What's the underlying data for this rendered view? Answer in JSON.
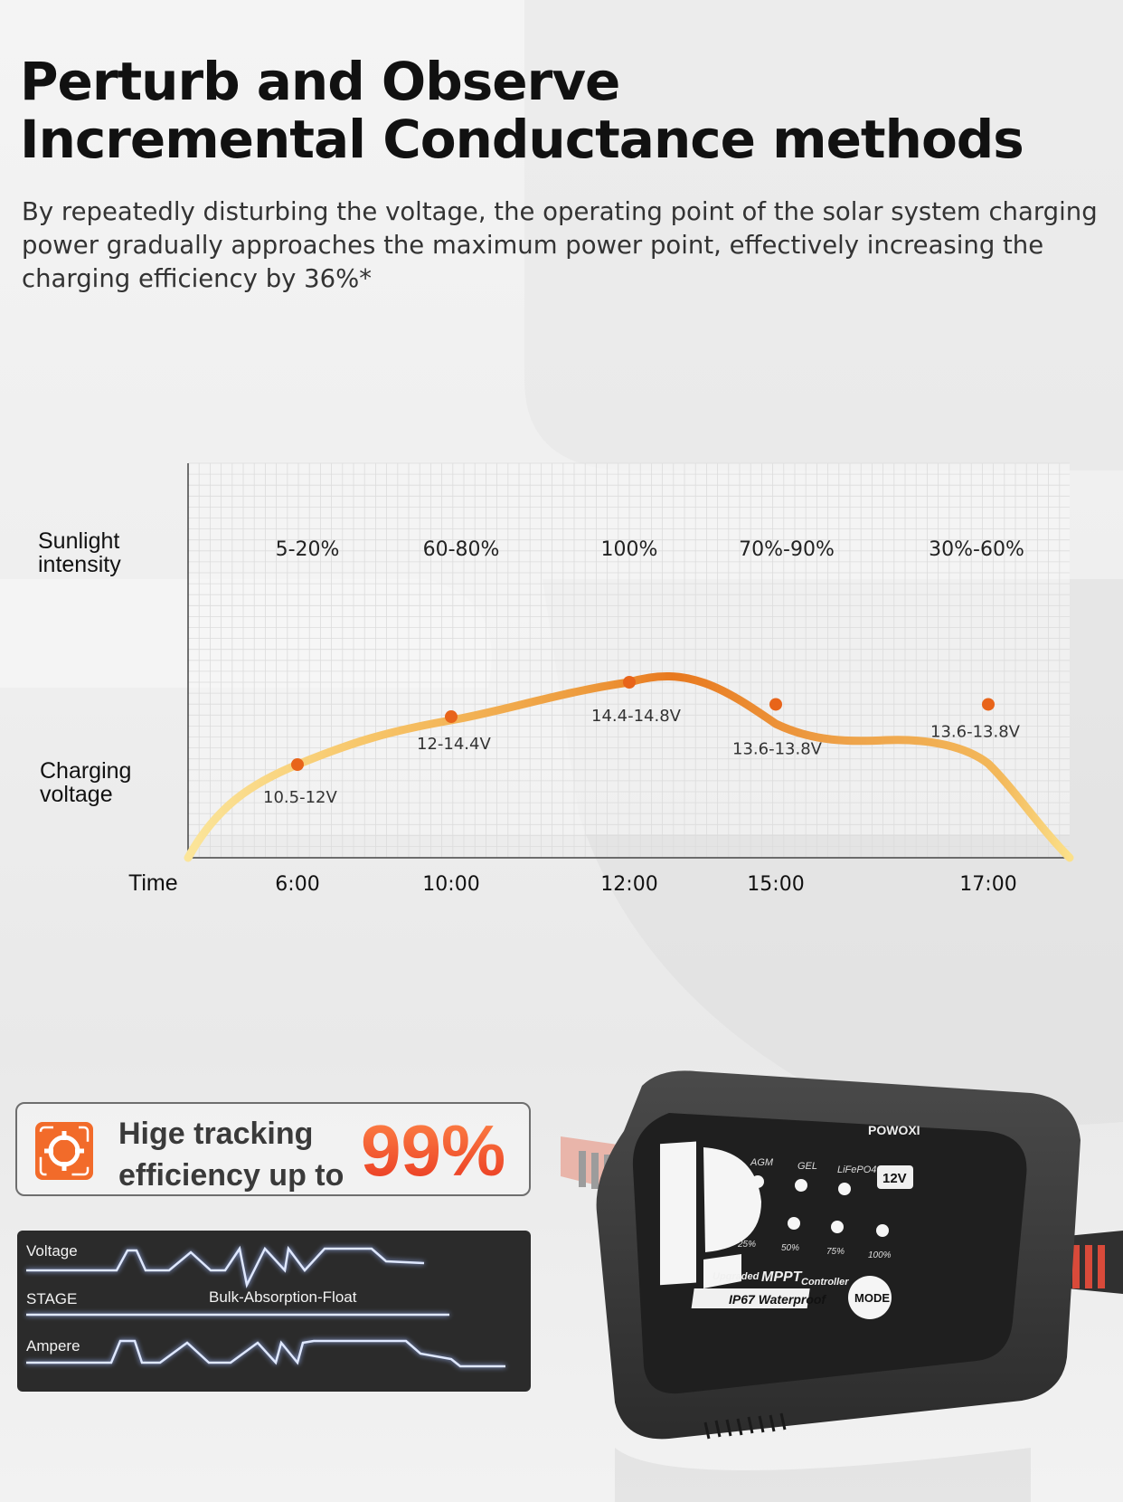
{
  "header": {
    "title_line1": "Perturb and Observe",
    "title_line2": "Incremental Conductance methods",
    "description": "By repeatedly disturbing the voltage, the operating point of the solar system charging power gradually approaches the maximum power point, effectively increasing the charging efficiency by 36%*"
  },
  "chart_data": {
    "type": "line",
    "row_labels": {
      "sunlight_line1": "Sunlight",
      "sunlight_line2": "intensity",
      "voltage_line1": "Charging",
      "voltage_line2": "voltage",
      "time": "Time"
    },
    "x": [
      "6:00",
      "10:00",
      "12:00",
      "15:00",
      "17:00"
    ],
    "sunlight_intensity": [
      "5-20%",
      "60-80%",
      "100%",
      "70%-90%",
      "30%-60%"
    ],
    "series": [
      {
        "values": [
          11.25,
          13.2,
          14.6,
          13.7,
          13.7
        ],
        "labels": [
          "10.5-12V",
          "12-14.4V",
          "14.4-14.8V",
          "13.6-13.8V",
          "13.6-13.8V"
        ]
      }
    ],
    "grid": true,
    "colors": {
      "line_start": "#fbe08a",
      "line_mid": "#f39a3c",
      "line_peak": "#e8781e",
      "marker": "#e8641a"
    }
  },
  "tracking": {
    "line1": "Hige tracking",
    "line2": "efficiency up to",
    "value": "99%",
    "accent": "#f05a28"
  },
  "waveforms": {
    "voltage": "Voltage",
    "stage": "STAGE",
    "stage_value": "Bulk-Absorption-Float",
    "ampere": "Ampere"
  },
  "device": {
    "brand": "POWOXI",
    "modes": [
      "AGM",
      "GEL",
      "LiFePO4"
    ],
    "voltage": "12V",
    "levels": [
      "25%",
      "50%",
      "75%",
      "100%"
    ],
    "line_upgraded": "Upgraded",
    "line_mppt": "MPPT",
    "line_controller": "Controller",
    "waterproof": "IP67 Waterproof",
    "mode_button": "MODE"
  }
}
